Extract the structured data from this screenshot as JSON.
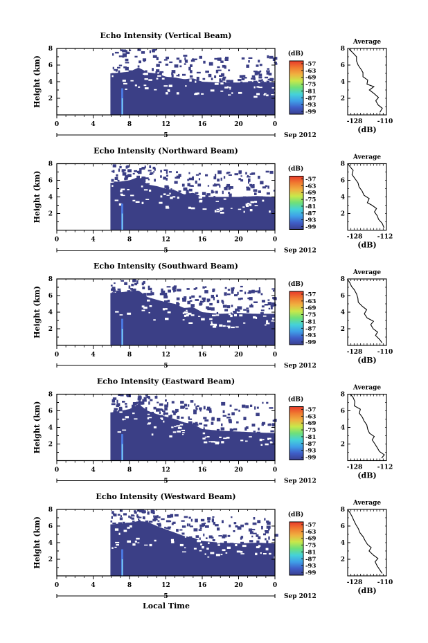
{
  "figure": {
    "xlabel": "Local Time",
    "date_label": "5",
    "month_label": "Sep 2012"
  },
  "panels": [
    {
      "title": "Echo Intensity (Vertical Beam)",
      "avg_xticks": [
        "-128",
        "-110"
      ]
    },
    {
      "title": "Echo Intensity (Northward Beam)",
      "avg_xticks": [
        "-128",
        "-112"
      ]
    },
    {
      "title": "Echo Intensity (Southward Beam)",
      "avg_xticks": [
        "-128",
        "-110"
      ]
    },
    {
      "title": "Echo Intensity (Eastward Beam)",
      "avg_xticks": [
        "-128",
        "-112"
      ]
    },
    {
      "title": "Echo Intensity (Westward Beam)",
      "avg_xticks": [
        "-128",
        "-110"
      ]
    }
  ],
  "colors": {
    "echo_fill": "#3b3f86",
    "echo_stripe": "#4a78e0",
    "colorbar": [
      "#3a3f8f",
      "#3f5ec8",
      "#3fa0e8",
      "#45d2d8",
      "#6ee07a",
      "#c8e84a",
      "#f0b040",
      "#f07a30",
      "#e83a2a"
    ]
  },
  "chart_data": [
    {
      "type": "heatmap",
      "title": "Echo Intensity (Vertical Beam)",
      "ylabel": "Height (km)",
      "xticks": [
        "0",
        "4",
        "8",
        "12",
        "16",
        "20",
        "0"
      ],
      "yticks": [
        "2",
        "4",
        "6",
        "8"
      ],
      "xlim": [
        0,
        24
      ],
      "ylim": [
        0,
        8
      ],
      "colorbar_label": "(dB)",
      "colorbar_ticks": [
        "-57",
        "-63",
        "-69",
        "-75",
        "-81",
        "-87",
        "-93",
        "-99"
      ],
      "start_time_hr": 5.9,
      "stripe_time_hr": 7.2,
      "echo_top_km": [
        [
          6,
          5.0
        ],
        [
          8,
          5.2
        ],
        [
          9,
          5.7
        ],
        [
          10,
          5.1
        ],
        [
          11,
          5.0
        ],
        [
          12,
          4.6
        ],
        [
          13,
          4.5
        ],
        [
          14,
          4.3
        ],
        [
          15,
          4.4
        ],
        [
          16,
          4.0
        ],
        [
          18,
          3.9
        ],
        [
          20,
          3.9
        ],
        [
          22,
          4.0
        ],
        [
          24,
          3.9
        ]
      ],
      "average": {
        "title": "Average",
        "xlabel": "(dB)",
        "xlim": [
          -128,
          -110
        ],
        "yticks": [
          "2",
          "4",
          "6",
          "8"
        ],
        "ylim": [
          0,
          8
        ],
        "profile": [
          [
            -113,
            0.3
          ],
          [
            -112,
            0.8
          ],
          [
            -114,
            1.2
          ],
          [
            -115,
            1.7
          ],
          [
            -114,
            2.1
          ],
          [
            -116,
            2.6
          ],
          [
            -118,
            3.0
          ],
          [
            -116,
            3.4
          ],
          [
            -119,
            3.7
          ],
          [
            -119,
            4.2
          ],
          [
            -121,
            4.6
          ],
          [
            -121,
            5.1
          ],
          [
            -122,
            5.5
          ],
          [
            -123,
            6.0
          ],
          [
            -124,
            6.5
          ],
          [
            -124,
            7.0
          ],
          [
            -126,
            7.5
          ],
          [
            -127,
            7.9
          ]
        ]
      }
    },
    {
      "type": "heatmap",
      "title": "Echo Intensity (Northward Beam)",
      "ylabel": "Height (km)",
      "xticks": [
        "0",
        "4",
        "8",
        "12",
        "16",
        "20",
        "0"
      ],
      "yticks": [
        "2",
        "4",
        "6",
        "8"
      ],
      "xlim": [
        0,
        24
      ],
      "ylim": [
        0,
        8
      ],
      "colorbar_label": "(dB)",
      "colorbar_ticks": [
        "-57",
        "-63",
        "-69",
        "-75",
        "-81",
        "-87",
        "-93",
        "-99"
      ],
      "start_time_hr": 5.9,
      "stripe_time_hr": 7.2,
      "echo_top_km": [
        [
          6,
          5.7
        ],
        [
          8,
          6.0
        ],
        [
          9,
          6.4
        ],
        [
          10,
          5.5
        ],
        [
          11,
          5.3
        ],
        [
          12,
          5.0
        ],
        [
          13,
          4.8
        ],
        [
          14,
          4.3
        ],
        [
          15,
          4.5
        ],
        [
          16,
          4.0
        ],
        [
          18,
          4.0
        ],
        [
          20,
          4.0
        ],
        [
          22,
          4.1
        ],
        [
          24,
          4.0
        ]
      ],
      "average": {
        "title": "Average",
        "xlabel": "(dB)",
        "xlim": [
          -128,
          -112
        ],
        "yticks": [
          "2",
          "4",
          "6",
          "8"
        ],
        "ylim": [
          0,
          8
        ],
        "profile": [
          [
            -113,
            0.3
          ],
          [
            -114,
            0.8
          ],
          [
            -115,
            1.3
          ],
          [
            -116,
            1.7
          ],
          [
            -117,
            2.2
          ],
          [
            -116,
            2.6
          ],
          [
            -118,
            3.0
          ],
          [
            -120,
            3.3
          ],
          [
            -119,
            3.8
          ],
          [
            -121,
            4.2
          ],
          [
            -122,
            4.7
          ],
          [
            -123,
            5.2
          ],
          [
            -124,
            5.7
          ],
          [
            -125,
            6.2
          ],
          [
            -126,
            6.7
          ],
          [
            -126,
            7.2
          ],
          [
            -127,
            7.6
          ],
          [
            -128,
            8.0
          ]
        ]
      }
    },
    {
      "type": "heatmap",
      "title": "Echo Intensity (Southward Beam)",
      "ylabel": "Height (km)",
      "xticks": [
        "0",
        "4",
        "8",
        "12",
        "16",
        "20",
        "0"
      ],
      "yticks": [
        "2",
        "4",
        "6",
        "8"
      ],
      "xlim": [
        0,
        24
      ],
      "ylim": [
        0,
        8
      ],
      "colorbar_label": "(dB)",
      "colorbar_ticks": [
        "-57",
        "-63",
        "-69",
        "-75",
        "-81",
        "-87",
        "-93",
        "-99"
      ],
      "start_time_hr": 5.9,
      "stripe_time_hr": 7.2,
      "echo_top_km": [
        [
          6,
          6.3
        ],
        [
          8,
          6.5
        ],
        [
          9,
          6.6
        ],
        [
          10,
          5.8
        ],
        [
          11,
          5.5
        ],
        [
          12,
          5.2
        ],
        [
          13,
          5.0
        ],
        [
          14,
          4.5
        ],
        [
          15,
          4.6
        ],
        [
          16,
          4.0
        ],
        [
          18,
          3.8
        ],
        [
          20,
          3.9
        ],
        [
          22,
          3.8
        ],
        [
          24,
          3.8
        ]
      ],
      "average": {
        "title": "Average",
        "xlabel": "(dB)",
        "xlim": [
          -128,
          -110
        ],
        "yticks": [
          "2",
          "4",
          "6",
          "8"
        ],
        "ylim": [
          0,
          8
        ],
        "profile": [
          [
            -112,
            0.3
          ],
          [
            -113,
            0.7
          ],
          [
            -115,
            1.2
          ],
          [
            -114,
            1.6
          ],
          [
            -116,
            2.0
          ],
          [
            -117,
            2.5
          ],
          [
            -116,
            2.9
          ],
          [
            -119,
            3.3
          ],
          [
            -120,
            3.8
          ],
          [
            -119,
            4.3
          ],
          [
            -121,
            4.7
          ],
          [
            -123,
            5.2
          ],
          [
            -123,
            5.7
          ],
          [
            -124,
            6.2
          ],
          [
            -125,
            6.7
          ],
          [
            -126,
            7.1
          ],
          [
            -127,
            7.6
          ],
          [
            -128,
            8.0
          ]
        ]
      }
    },
    {
      "type": "heatmap",
      "title": "Echo Intensity (Eastward Beam)",
      "ylabel": "Height (km)",
      "xticks": [
        "0",
        "4",
        "8",
        "12",
        "16",
        "20",
        "0"
      ],
      "yticks": [
        "2",
        "4",
        "6",
        "8"
      ],
      "xlim": [
        0,
        24
      ],
      "ylim": [
        0,
        8
      ],
      "colorbar_label": "(dB)",
      "colorbar_ticks": [
        "-57",
        "-63",
        "-69",
        "-75",
        "-81",
        "-87",
        "-93",
        "-99"
      ],
      "start_time_hr": 5.9,
      "stripe_time_hr": 7.2,
      "echo_top_km": [
        [
          6,
          5.8
        ],
        [
          8,
          6.2
        ],
        [
          9,
          6.8
        ],
        [
          10,
          6.0
        ],
        [
          11,
          5.6
        ],
        [
          12,
          5.3
        ],
        [
          13,
          5.0
        ],
        [
          14,
          4.6
        ],
        [
          15,
          4.4
        ],
        [
          16,
          3.8
        ],
        [
          18,
          3.6
        ],
        [
          20,
          3.5
        ],
        [
          22,
          3.4
        ],
        [
          24,
          3.3
        ]
      ],
      "average": {
        "title": "Average",
        "xlabel": "(dB)",
        "xlim": [
          -128,
          -112
        ],
        "yticks": [
          "2",
          "4",
          "6",
          "8"
        ],
        "ylim": [
          0,
          8
        ],
        "profile": [
          [
            -114,
            0.3
          ],
          [
            -113,
            0.7
          ],
          [
            -115,
            1.1
          ],
          [
            -116,
            1.6
          ],
          [
            -117,
            2.0
          ],
          [
            -118,
            2.5
          ],
          [
            -117,
            2.9
          ],
          [
            -119,
            3.3
          ],
          [
            -120,
            3.8
          ],
          [
            -120,
            4.3
          ],
          [
            -121,
            4.8
          ],
          [
            -122,
            5.2
          ],
          [
            -123,
            5.7
          ],
          [
            -123,
            6.2
          ],
          [
            -125,
            6.6
          ],
          [
            -125,
            7.1
          ],
          [
            -126,
            7.6
          ],
          [
            -127,
            8.0
          ]
        ]
      }
    },
    {
      "type": "heatmap",
      "title": "Echo Intensity (Westward Beam)",
      "ylabel": "Height (km)",
      "xticks": [
        "0",
        "4",
        "8",
        "12",
        "16",
        "20",
        "0"
      ],
      "yticks": [
        "2",
        "4",
        "6",
        "8"
      ],
      "xlim": [
        0,
        24
      ],
      "ylim": [
        0,
        8
      ],
      "colorbar_label": "(dB)",
      "colorbar_ticks": [
        "-57",
        "-63",
        "-69",
        "-75",
        "-81",
        "-87",
        "-93",
        "-99"
      ],
      "start_time_hr": 5.9,
      "stripe_time_hr": 7.2,
      "echo_top_km": [
        [
          6,
          6.2
        ],
        [
          8,
          6.4
        ],
        [
          9,
          6.6
        ],
        [
          10,
          6.5
        ],
        [
          11,
          6.0
        ],
        [
          12,
          5.6
        ],
        [
          13,
          5.2
        ],
        [
          14,
          4.8
        ],
        [
          15,
          4.6
        ],
        [
          16,
          4.2
        ],
        [
          18,
          4.0
        ],
        [
          20,
          3.9
        ],
        [
          22,
          4.0
        ],
        [
          24,
          3.9
        ]
      ],
      "average": {
        "title": "Average",
        "xlabel": "(dB)",
        "xlim": [
          -128,
          -110
        ],
        "yticks": [
          "2",
          "4",
          "6",
          "8"
        ],
        "ylim": [
          0,
          8
        ],
        "profile": [
          [
            -112,
            0.3
          ],
          [
            -113,
            0.8
          ],
          [
            -114,
            1.2
          ],
          [
            -115,
            1.7
          ],
          [
            -114,
            2.1
          ],
          [
            -116,
            2.5
          ],
          [
            -118,
            3.0
          ],
          [
            -117,
            3.4
          ],
          [
            -119,
            3.8
          ],
          [
            -120,
            4.3
          ],
          [
            -121,
            4.7
          ],
          [
            -122,
            5.2
          ],
          [
            -123,
            5.7
          ],
          [
            -124,
            6.2
          ],
          [
            -125,
            6.6
          ],
          [
            -126,
            7.1
          ],
          [
            -127,
            7.6
          ],
          [
            -128,
            8.0
          ]
        ]
      }
    }
  ]
}
